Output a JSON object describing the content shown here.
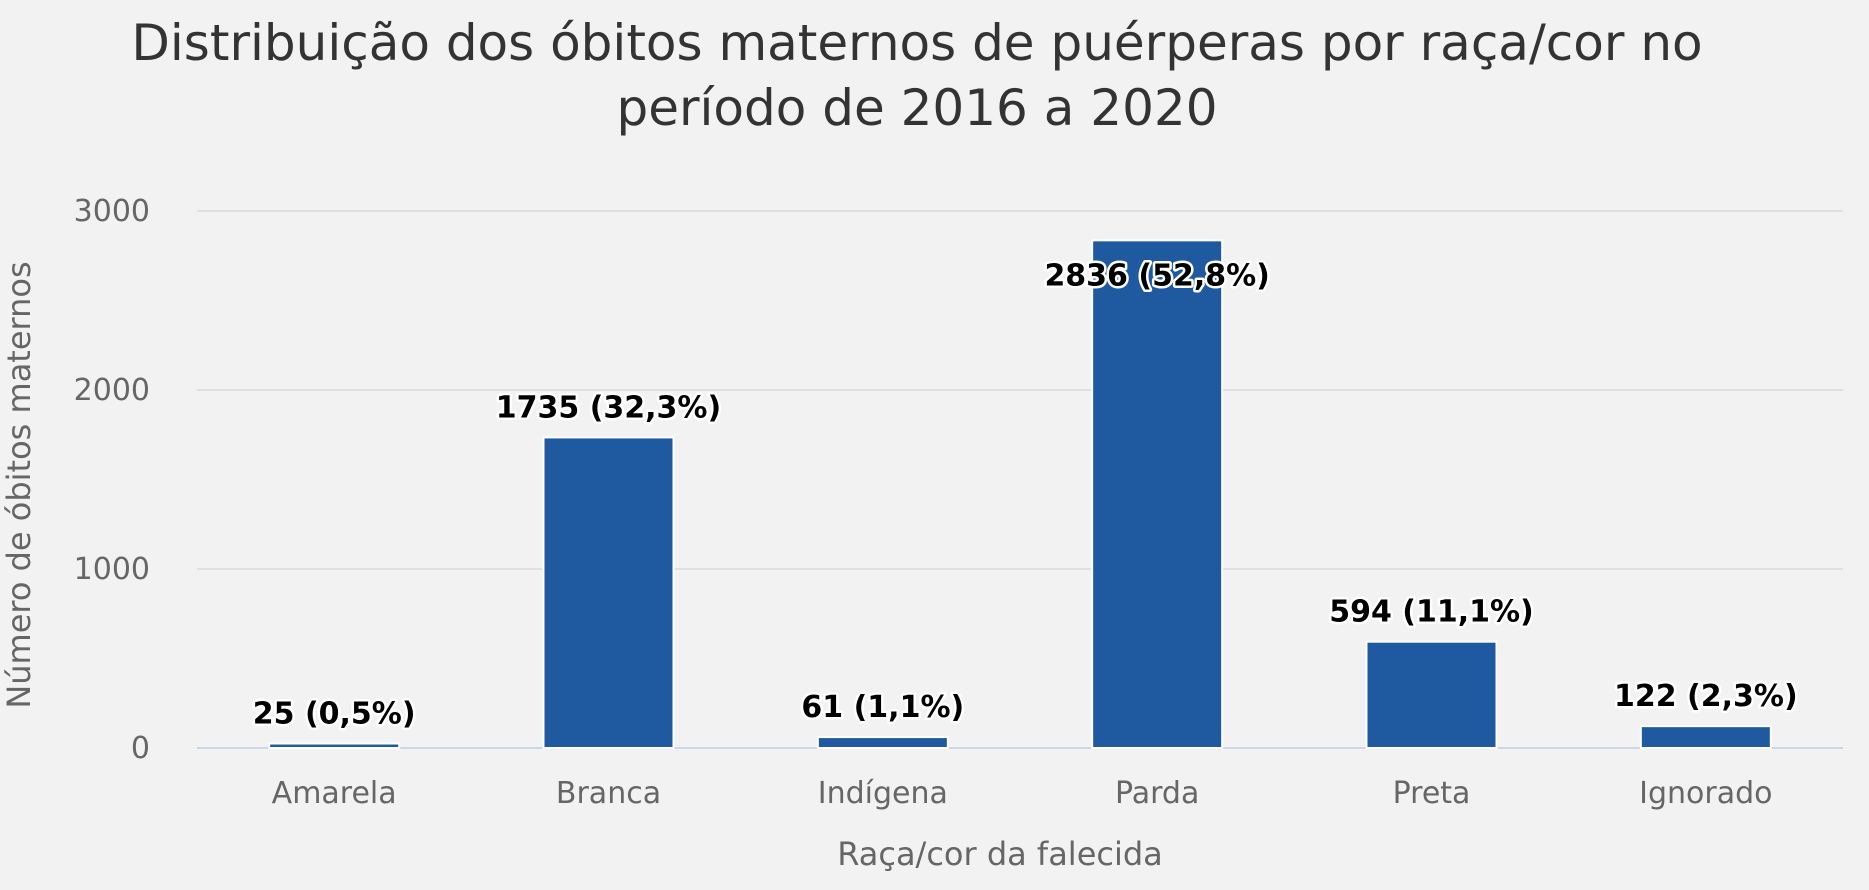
{
  "chart_data": {
    "type": "bar",
    "title": "Distribuição dos óbitos maternos de puérperas por raça/cor no período de 2016 a 2020",
    "title_lines": [
      "Distribuição dos óbitos maternos de puérperas por raça/cor no",
      "período de 2016 a 2020"
    ],
    "xlabel": "Raça/cor da falecida",
    "ylabel": "Número de óbitos maternos",
    "categories": [
      "Amarela",
      "Branca",
      "Indígena",
      "Parda",
      "Preta",
      "Ignorado"
    ],
    "values": [
      25,
      1735,
      61,
      2836,
      594,
      122
    ],
    "data_labels": [
      "25 (0,5%)",
      "1735 (32,3%)",
      "61 (1,1%)",
      "2836 (52,8%)",
      "594 (11,1%)",
      "122 (2,3%)"
    ],
    "ylim": [
      0,
      3000
    ],
    "yticks": [
      "0",
      "1000",
      "2000",
      "3000"
    ],
    "grid": true,
    "bar_color": "#1f5aa0",
    "background_color": "#f2f2f2"
  }
}
